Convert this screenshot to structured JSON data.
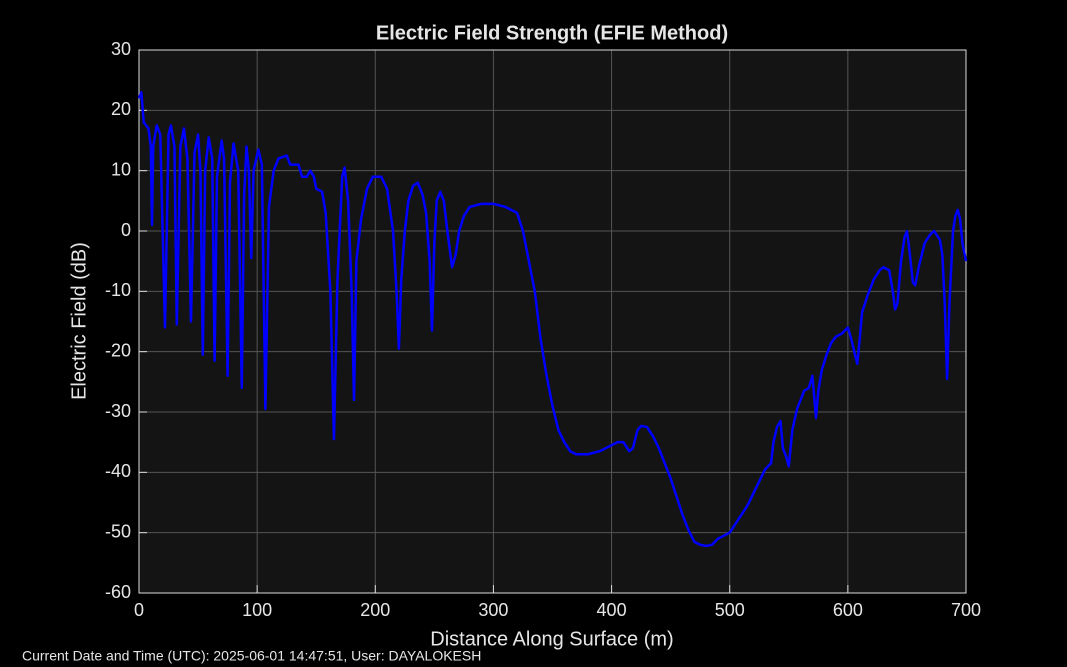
{
  "chart_data": {
    "type": "line",
    "title": "Electric Field Strength (EFIE Method)",
    "xlabel": "Distance Along Surface (m)",
    "ylabel": "Electric Field (dB)",
    "x": [
      0,
      2,
      4,
      8,
      10,
      11,
      12,
      15,
      18,
      22,
      25,
      27,
      30,
      32,
      35,
      38,
      41,
      44,
      47,
      50,
      52,
      54,
      56,
      59,
      62,
      64,
      66,
      70,
      72,
      75,
      77,
      80,
      84,
      87,
      89,
      91,
      93,
      95,
      97,
      101,
      104,
      107,
      110,
      114,
      118,
      125,
      128,
      135,
      138,
      142,
      145,
      148,
      150,
      155,
      158,
      162,
      165,
      168,
      172,
      174,
      177,
      180,
      182,
      184,
      188,
      193,
      198,
      205,
      210,
      215,
      218,
      220,
      222,
      225,
      228,
      232,
      236,
      240,
      243,
      246,
      248,
      250,
      252,
      255,
      258,
      261,
      265,
      268,
      271,
      275,
      280,
      290,
      300,
      310,
      320,
      325,
      330,
      335,
      340,
      345,
      350,
      355,
      360,
      365,
      370,
      380,
      390,
      400,
      405,
      410,
      415,
      418,
      422,
      425,
      430,
      435,
      440,
      445,
      450,
      455,
      460,
      465,
      470,
      475,
      480,
      485,
      490,
      495,
      500,
      505,
      510,
      515,
      520,
      525,
      530,
      535,
      537,
      540,
      543,
      545,
      548,
      550,
      553,
      557,
      560,
      563,
      567,
      570,
      573,
      575,
      578,
      582,
      586,
      590,
      595,
      600,
      603,
      606,
      608,
      610,
      612,
      617,
      622,
      627,
      630,
      635,
      638,
      640,
      642,
      645,
      648,
      650,
      652,
      655,
      657,
      660,
      665,
      670,
      673,
      678,
      680,
      682,
      684,
      686,
      689,
      691,
      693,
      695,
      697,
      699,
      700
    ],
    "values": [
      22,
      23,
      18,
      17,
      14,
      1,
      14,
      17.5,
      16,
      -16,
      16,
      17.5,
      14,
      -15.5,
      14,
      17,
      12,
      -15,
      13,
      16,
      10,
      -20.5,
      10,
      15.5,
      12,
      -21.5,
      9,
      15,
      12,
      -24,
      8,
      14.5,
      10,
      -26,
      6,
      14,
      10,
      -4.5,
      10,
      13.5,
      11,
      -29.5,
      4,
      10,
      12,
      12.5,
      11,
      11,
      9,
      9,
      10,
      9,
      7,
      6.5,
      3,
      -10,
      -34.5,
      -8,
      9,
      10.5,
      5,
      -10,
      -28,
      -5,
      2,
      7,
      9,
      9,
      7,
      0,
      -10,
      -19.5,
      -8,
      0,
      5,
      7.5,
      8,
      6,
      3,
      -5,
      -16.5,
      -2,
      5,
      6.5,
      5,
      0,
      -6,
      -4,
      0,
      2.5,
      4,
      4.5,
      4.5,
      4,
      3,
      0,
      -5,
      -10,
      -18,
      -24,
      -29,
      -33,
      -35,
      -36.5,
      -37,
      -37,
      -36.5,
      -35.5,
      -35,
      -35,
      -36.5,
      -36,
      -33,
      -32.3,
      -32.5,
      -34,
      -36,
      -38.5,
      -41,
      -44,
      -47,
      -49.5,
      -51.5,
      -52,
      -52.2,
      -52,
      -51,
      -50.5,
      -50,
      -48.5,
      -47,
      -45.5,
      -43.5,
      -41.5,
      -39.5,
      -38.5,
      -35,
      -32.5,
      -31.5,
      -36,
      -37.5,
      -39,
      -33,
      -29.5,
      -28,
      -26.5,
      -26,
      -24,
      -31,
      -26.5,
      -23,
      -20.5,
      -18.5,
      -17.5,
      -17,
      -16,
      -18,
      -20.5,
      -22,
      -18,
      -13.5,
      -10.5,
      -8,
      -6.5,
      -6,
      -6.5,
      -10,
      -13,
      -12,
      -5,
      -1,
      0,
      -3,
      -8.5,
      -9,
      -6,
      -2,
      -0.5,
      0,
      -1.5,
      -4,
      -12,
      -24.5,
      -12,
      0,
      2.5,
      3.5,
      2,
      -2,
      -4,
      -5
    ],
    "color": "#0000ff",
    "xlim": [
      0,
      700
    ],
    "xticks": [
      0,
      100,
      200,
      300,
      400,
      500,
      600,
      700
    ],
    "ylim": [
      -60,
      30
    ],
    "yticks": [
      -60,
      -50,
      -40,
      -30,
      -20,
      -10,
      0,
      10,
      20,
      30
    ],
    "grid": true
  },
  "footer": "Current Date and Time (UTC): 2025-06-01 14:47:51, User: DAYALOKESH"
}
